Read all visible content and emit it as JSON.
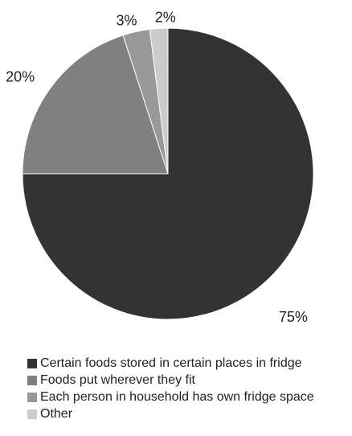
{
  "chart_data": {
    "type": "pie",
    "categories": [
      "Certain foods stored in certain places in fridge",
      "Foods put wherever they fit",
      "Each person in household has own fridge space",
      "Other"
    ],
    "values": [
      75,
      20,
      3,
      2
    ],
    "value_labels": [
      "75%",
      "20%",
      "3%",
      "2%"
    ],
    "colors": [
      "#333333",
      "#808080",
      "#999999",
      "#cccccc"
    ],
    "start": "12 o'clock, clockwise",
    "legend_position": "bottom-left"
  }
}
